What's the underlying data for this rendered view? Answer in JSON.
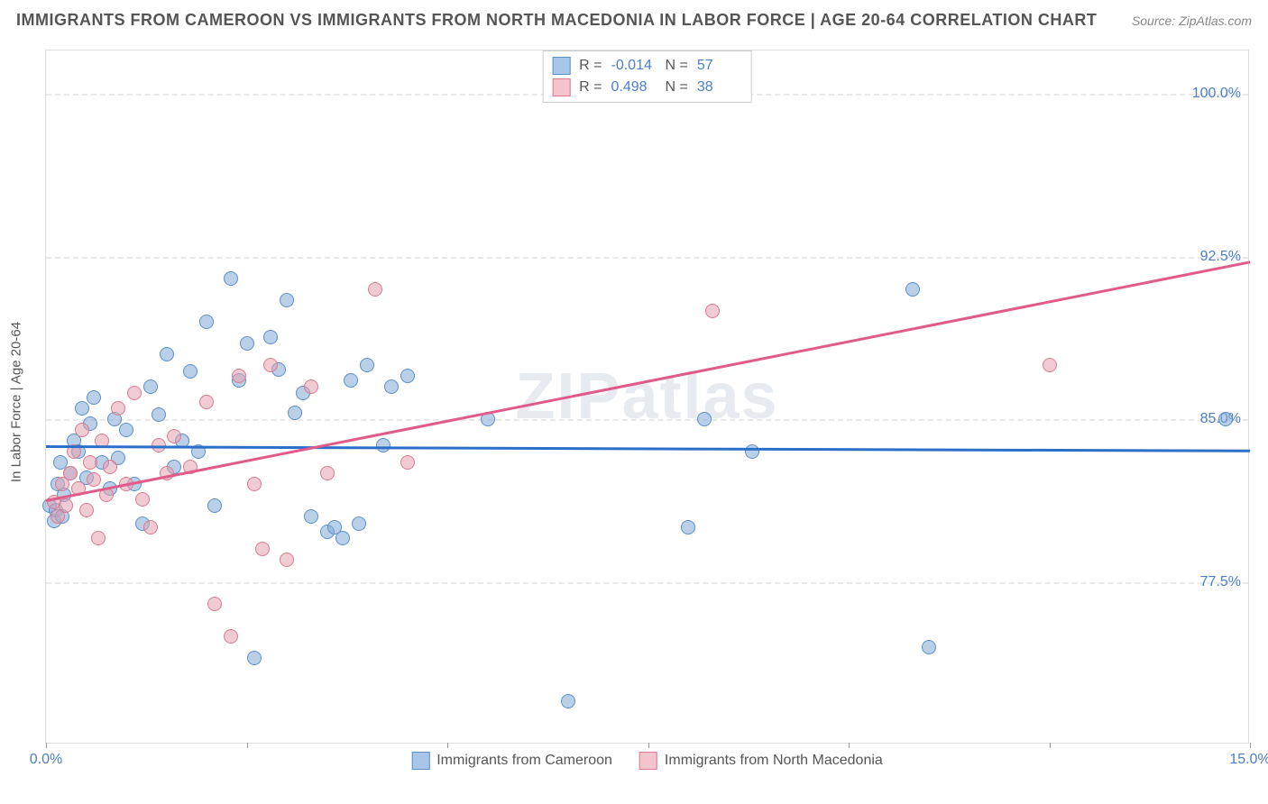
{
  "title": "IMMIGRANTS FROM CAMEROON VS IMMIGRANTS FROM NORTH MACEDONIA IN LABOR FORCE | AGE 20-64 CORRELATION CHART",
  "source": "Source: ZipAtlas.com",
  "watermark": "ZIPatlas",
  "ylabel": "In Labor Force | Age 20-64",
  "xlim": [
    0,
    15
  ],
  "ylim": [
    70,
    102
  ],
  "ytick_labels": [
    "100.0%",
    "92.5%",
    "85.0%",
    "77.5%"
  ],
  "ytick_values": [
    100,
    92.5,
    85,
    77.5
  ],
  "xtick_values": [
    0,
    2.5,
    5,
    7.5,
    10,
    12.5,
    15
  ],
  "xtick_labels_shown": {
    "0": "0.0%",
    "15": "15.0%"
  },
  "legend_bottom": [
    {
      "label": "Immigrants from Cameroon",
      "fill": "#a8c7e8",
      "stroke": "#5a8fc9"
    },
    {
      "label": "Immigrants from North Macedonia",
      "fill": "#f3c4cc",
      "stroke": "#d97a8f"
    }
  ],
  "legend_top": [
    {
      "swatch_fill": "#a8c7e8",
      "swatch_stroke": "#5a8fc9",
      "r": "-0.014",
      "n": "57"
    },
    {
      "swatch_fill": "#f3c4cc",
      "swatch_stroke": "#d97a8f",
      "r": "0.498",
      "n": "38"
    }
  ],
  "series": [
    {
      "name": "cameroon",
      "fill": "rgba(130,170,215,0.55)",
      "stroke": "#5a8fc9",
      "marker_size": 16,
      "trend": {
        "y_at_xmin": 83.8,
        "y_at_xmax": 83.6,
        "color": "#2c6fc9",
        "width": 3
      },
      "points": [
        [
          0.05,
          81.0
        ],
        [
          0.1,
          80.3
        ],
        [
          0.12,
          80.8
        ],
        [
          0.15,
          82.0
        ],
        [
          0.18,
          83.0
        ],
        [
          0.2,
          80.5
        ],
        [
          0.22,
          81.5
        ],
        [
          0.3,
          82.5
        ],
        [
          0.35,
          84.0
        ],
        [
          0.4,
          83.5
        ],
        [
          0.45,
          85.5
        ],
        [
          0.5,
          82.3
        ],
        [
          0.55,
          84.8
        ],
        [
          0.6,
          86.0
        ],
        [
          0.7,
          83.0
        ],
        [
          0.8,
          81.8
        ],
        [
          0.85,
          85.0
        ],
        [
          0.9,
          83.2
        ],
        [
          1.0,
          84.5
        ],
        [
          1.1,
          82.0
        ],
        [
          1.2,
          80.2
        ],
        [
          1.3,
          86.5
        ],
        [
          1.4,
          85.2
        ],
        [
          1.5,
          88.0
        ],
        [
          1.6,
          82.8
        ],
        [
          1.7,
          84.0
        ],
        [
          1.8,
          87.2
        ],
        [
          1.9,
          83.5
        ],
        [
          2.0,
          89.5
        ],
        [
          2.1,
          81.0
        ],
        [
          2.3,
          91.5
        ],
        [
          2.4,
          86.8
        ],
        [
          2.5,
          88.5
        ],
        [
          2.6,
          74.0
        ],
        [
          2.8,
          88.8
        ],
        [
          2.9,
          87.3
        ],
        [
          3.0,
          90.5
        ],
        [
          3.1,
          85.3
        ],
        [
          3.2,
          86.2
        ],
        [
          3.3,
          80.5
        ],
        [
          3.5,
          79.8
        ],
        [
          3.6,
          80.0
        ],
        [
          3.7,
          79.5
        ],
        [
          3.8,
          86.8
        ],
        [
          3.9,
          80.2
        ],
        [
          4.0,
          87.5
        ],
        [
          4.2,
          83.8
        ],
        [
          4.3,
          86.5
        ],
        [
          4.5,
          87.0
        ],
        [
          5.5,
          85.0
        ],
        [
          6.5,
          72.0
        ],
        [
          8.0,
          80.0
        ],
        [
          8.2,
          85.0
        ],
        [
          8.8,
          83.5
        ],
        [
          10.8,
          91.0
        ],
        [
          11.0,
          74.5
        ],
        [
          14.7,
          85.0
        ]
      ]
    },
    {
      "name": "north-macedonia",
      "fill": "rgba(230,160,175,0.55)",
      "stroke": "#d97a8f",
      "marker_size": 16,
      "trend": {
        "y_at_xmin": 81.3,
        "y_at_xmax": 92.3,
        "color": "#e05a8a",
        "width": 2.5
      },
      "points": [
        [
          0.1,
          81.2
        ],
        [
          0.15,
          80.5
        ],
        [
          0.2,
          82.0
        ],
        [
          0.25,
          81.0
        ],
        [
          0.3,
          82.5
        ],
        [
          0.35,
          83.5
        ],
        [
          0.4,
          81.8
        ],
        [
          0.45,
          84.5
        ],
        [
          0.5,
          80.8
        ],
        [
          0.55,
          83.0
        ],
        [
          0.6,
          82.2
        ],
        [
          0.65,
          79.5
        ],
        [
          0.7,
          84.0
        ],
        [
          0.75,
          81.5
        ],
        [
          0.8,
          82.8
        ],
        [
          0.9,
          85.5
        ],
        [
          1.0,
          82.0
        ],
        [
          1.1,
          86.2
        ],
        [
          1.2,
          81.3
        ],
        [
          1.3,
          80.0
        ],
        [
          1.4,
          83.8
        ],
        [
          1.5,
          82.5
        ],
        [
          1.6,
          84.2
        ],
        [
          1.8,
          82.8
        ],
        [
          2.0,
          85.8
        ],
        [
          2.1,
          76.5
        ],
        [
          2.3,
          75.0
        ],
        [
          2.4,
          87.0
        ],
        [
          2.6,
          82.0
        ],
        [
          2.7,
          79.0
        ],
        [
          2.8,
          87.5
        ],
        [
          3.0,
          78.5
        ],
        [
          3.3,
          86.5
        ],
        [
          3.5,
          82.5
        ],
        [
          4.1,
          91.0
        ],
        [
          4.5,
          83.0
        ],
        [
          8.3,
          90.0
        ],
        [
          12.5,
          87.5
        ]
      ]
    }
  ]
}
